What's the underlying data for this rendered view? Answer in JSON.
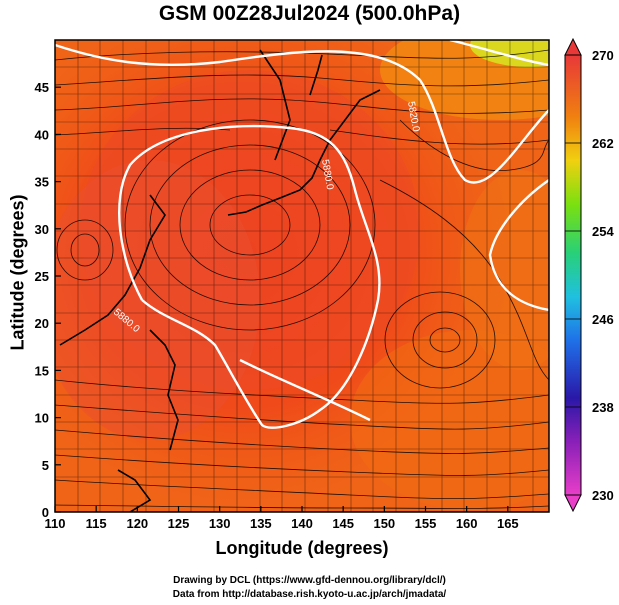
{
  "title": "GSM 00Z28Jul2024 (500.0hPa)",
  "credits": {
    "line1": "Drawing by DCL (https://www.gfd-dennou.org/library/dcl/)",
    "line2": "Data from http://database.rish.kyoto-u.ac.jp/arch/jmadata/"
  },
  "chart_data": {
    "type": "heatmap",
    "xlabel": "Longitude (degrees)",
    "ylabel": "Latitude  (degrees)",
    "xlim": [
      110,
      170
    ],
    "ylim": [
      0,
      50
    ],
    "x_ticks": [
      110,
      115,
      120,
      125,
      130,
      135,
      140,
      145,
      150,
      155,
      160,
      165
    ],
    "y_ticks": [
      0,
      5,
      10,
      15,
      20,
      25,
      30,
      35,
      40,
      45
    ],
    "colorbar": {
      "min": 230,
      "max": 270,
      "ticks": [
        230,
        238,
        246,
        254,
        262,
        270
      ],
      "colors": [
        "#e83ec8",
        "#3d10a8",
        "#1f40e8",
        "#23b6e8",
        "#38d070",
        "#77e010",
        "#d8e018",
        "#f8b008",
        "#f06010",
        "#e83030"
      ]
    },
    "contours": [
      {
        "value": "5880.0",
        "labels": [
          "5880.0",
          "5880.0"
        ]
      },
      {
        "value": "5820.0",
        "labels": [
          "5820.0"
        ]
      }
    ]
  }
}
